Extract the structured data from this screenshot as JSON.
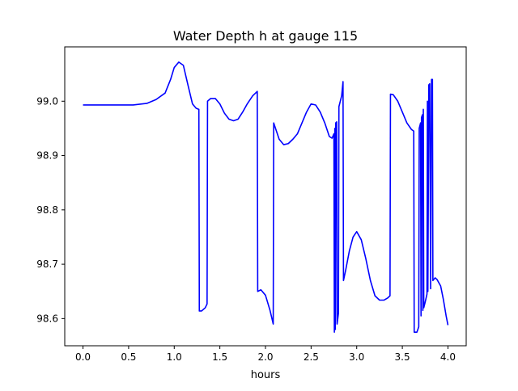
{
  "chart_data": {
    "type": "line",
    "title": "Water Depth h at gauge 115",
    "xlabel": "hours",
    "ylabel": "",
    "xlim": [
      -0.2,
      4.2
    ],
    "ylim": [
      98.55,
      99.1
    ],
    "xticks": [
      0.0,
      0.5,
      1.0,
      1.5,
      2.0,
      2.5,
      3.0,
      3.5,
      4.0
    ],
    "xtick_labels": [
      "0.0",
      "0.5",
      "1.0",
      "1.5",
      "2.0",
      "2.5",
      "3.0",
      "3.5",
      "4.0"
    ],
    "yticks": [
      98.6,
      98.7,
      98.8,
      98.9,
      99.0
    ],
    "ytick_labels": [
      "98.6",
      "98.7",
      "98.8",
      "98.9",
      "99.0"
    ],
    "grid": false,
    "legend": "none",
    "series": [
      {
        "color": "#0000ff",
        "points": [
          [
            0.0,
            98.993
          ],
          [
            0.3,
            98.993
          ],
          [
            0.55,
            98.993
          ],
          [
            0.7,
            98.996
          ],
          [
            0.8,
            99.003
          ],
          [
            0.9,
            99.015
          ],
          [
            0.96,
            99.04
          ],
          [
            1.0,
            99.062
          ],
          [
            1.05,
            99.072
          ],
          [
            1.1,
            99.066
          ],
          [
            1.15,
            99.03
          ],
          [
            1.2,
            98.995
          ],
          [
            1.24,
            98.987
          ],
          [
            1.27,
            98.985
          ],
          [
            1.275,
            98.614
          ],
          [
            1.3,
            98.614
          ],
          [
            1.34,
            98.62
          ],
          [
            1.36,
            98.627
          ],
          [
            1.365,
            99.0
          ],
          [
            1.4,
            99.005
          ],
          [
            1.45,
            99.005
          ],
          [
            1.5,
            98.995
          ],
          [
            1.55,
            98.978
          ],
          [
            1.6,
            98.967
          ],
          [
            1.65,
            98.964
          ],
          [
            1.7,
            98.967
          ],
          [
            1.75,
            98.98
          ],
          [
            1.8,
            98.995
          ],
          [
            1.86,
            99.01
          ],
          [
            1.91,
            99.018
          ],
          [
            1.915,
            98.65
          ],
          [
            1.95,
            98.653
          ],
          [
            2.0,
            98.643
          ],
          [
            2.05,
            98.615
          ],
          [
            2.085,
            98.59
          ],
          [
            2.09,
            98.96
          ],
          [
            2.12,
            98.945
          ],
          [
            2.15,
            98.93
          ],
          [
            2.2,
            98.92
          ],
          [
            2.25,
            98.922
          ],
          [
            2.3,
            98.93
          ],
          [
            2.35,
            98.94
          ],
          [
            2.4,
            98.96
          ],
          [
            2.45,
            98.98
          ],
          [
            2.5,
            98.995
          ],
          [
            2.55,
            98.993
          ],
          [
            2.6,
            98.98
          ],
          [
            2.65,
            98.96
          ],
          [
            2.7,
            98.935
          ],
          [
            2.73,
            98.932
          ],
          [
            2.75,
            98.94
          ],
          [
            2.755,
            98.575
          ],
          [
            2.76,
            98.95
          ],
          [
            2.765,
            98.58
          ],
          [
            2.77,
            98.96
          ],
          [
            2.78,
            98.962
          ],
          [
            2.785,
            98.59
          ],
          [
            2.8,
            98.61
          ],
          [
            2.805,
            98.99
          ],
          [
            2.82,
            99.0
          ],
          [
            2.835,
            99.01
          ],
          [
            2.85,
            99.036
          ],
          [
            2.855,
            98.67
          ],
          [
            2.88,
            98.69
          ],
          [
            2.92,
            98.725
          ],
          [
            2.96,
            98.75
          ],
          [
            3.0,
            98.76
          ],
          [
            3.05,
            98.745
          ],
          [
            3.1,
            98.71
          ],
          [
            3.15,
            98.67
          ],
          [
            3.2,
            98.642
          ],
          [
            3.25,
            98.634
          ],
          [
            3.3,
            98.634
          ],
          [
            3.34,
            98.638
          ],
          [
            3.365,
            98.642
          ],
          [
            3.37,
            99.013
          ],
          [
            3.4,
            99.012
          ],
          [
            3.45,
            99.0
          ],
          [
            3.5,
            98.98
          ],
          [
            3.55,
            98.96
          ],
          [
            3.6,
            98.948
          ],
          [
            3.625,
            98.945
          ],
          [
            3.63,
            98.575
          ],
          [
            3.66,
            98.575
          ],
          [
            3.68,
            98.585
          ],
          [
            3.685,
            98.95
          ],
          [
            3.7,
            98.96
          ],
          [
            3.705,
            98.605
          ],
          [
            3.71,
            98.97
          ],
          [
            3.72,
            98.975
          ],
          [
            3.725,
            98.615
          ],
          [
            3.73,
            98.985
          ],
          [
            3.735,
            98.62
          ],
          [
            3.75,
            98.63
          ],
          [
            3.77,
            98.645
          ],
          [
            3.775,
            99.0
          ],
          [
            3.78,
            98.65
          ],
          [
            3.79,
            99.03
          ],
          [
            3.8,
            99.032
          ],
          [
            3.81,
            98.655
          ],
          [
            3.82,
            99.04
          ],
          [
            3.83,
            99.04
          ],
          [
            3.835,
            98.67
          ],
          [
            3.86,
            98.675
          ],
          [
            3.88,
            98.672
          ],
          [
            3.92,
            98.66
          ],
          [
            3.95,
            98.635
          ],
          [
            3.98,
            98.605
          ],
          [
            4.0,
            98.588
          ]
        ]
      }
    ]
  }
}
